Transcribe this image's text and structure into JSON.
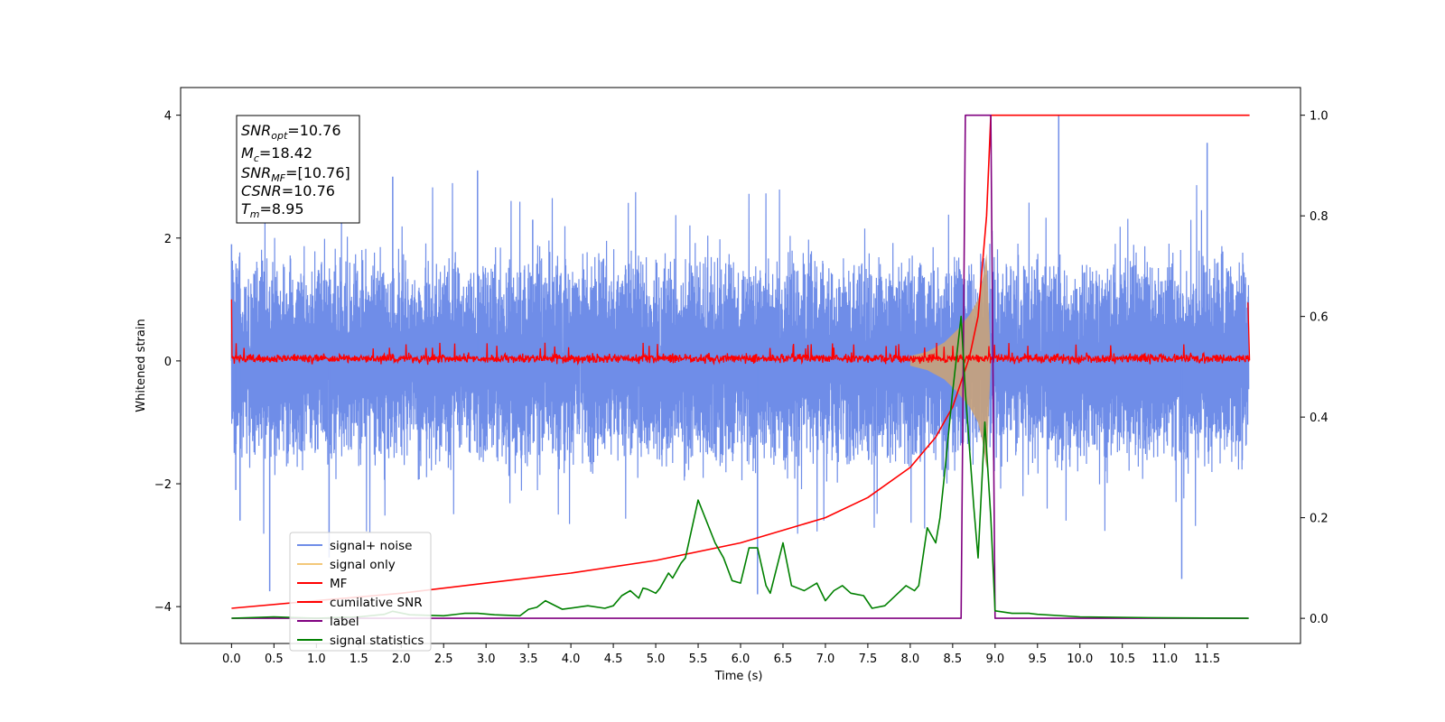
{
  "chart_data": {
    "type": "line",
    "xlabel": "Time (s)",
    "ylabel": "Whitened strain",
    "xlim": [
      -0.6,
      12.6
    ],
    "ylim": [
      -4.6,
      4.45
    ],
    "y2lim": [
      -0.05,
      1.055
    ],
    "x_ticks": [
      0.0,
      0.5,
      1.0,
      1.5,
      2.0,
      2.5,
      3.0,
      3.5,
      4.0,
      4.5,
      5.0,
      5.5,
      6.0,
      6.5,
      7.0,
      7.5,
      8.0,
      8.5,
      9.0,
      9.5,
      10.0,
      10.5,
      11.0,
      11.5
    ],
    "x_tick_labels": [
      "0.0",
      "0.5",
      "1.0",
      "1.5",
      "2.0",
      "2.5",
      "3.0",
      "3.5",
      "4.0",
      "4.5",
      "5.0",
      "5.5",
      "6.0",
      "6.5",
      "7.0",
      "7.5",
      "8.0",
      "8.5",
      "9.0",
      "9.5",
      "10.0",
      "10.5",
      "11.0",
      "11.5"
    ],
    "y_ticks": [
      -4,
      -2,
      0,
      2,
      4
    ],
    "y_tick_labels": [
      "−4",
      "−2",
      "0",
      "2",
      "4"
    ],
    "y2_ticks": [
      0.0,
      0.2,
      0.4,
      0.6,
      0.8,
      1.0
    ],
    "y2_tick_labels": [
      "0.0",
      "0.2",
      "0.4",
      "0.6",
      "0.8",
      "1.0"
    ],
    "grid": false,
    "legend_position": "bottom-left",
    "info_box": {
      "snr_opt": "=10.76",
      "mc": "=18.42",
      "snr_mf": "=[10.76]",
      "csnr": "=10.76",
      "tm": "=8.95"
    },
    "series": [
      {
        "name": "signal+ noise",
        "color": "#6f8de8",
        "axis": "left",
        "x_range": [
          0.0,
          11.99
        ],
        "noise_band": [
          -1.55,
          1.55
        ],
        "peaks": [
          [
            0.0,
            1.9
          ],
          [
            0.05,
            -2.1
          ],
          [
            0.1,
            -2.6
          ],
          [
            0.45,
            -3.75
          ],
          [
            1.15,
            -3.2
          ],
          [
            1.9,
            3.0
          ],
          [
            2.9,
            3.1
          ],
          [
            3.55,
            2.3
          ],
          [
            6.2,
            -3.8
          ],
          [
            9.75,
            4.0
          ],
          [
            11.2,
            -3.55
          ],
          [
            11.5,
            3.55
          ]
        ]
      },
      {
        "name": "signal only",
        "color": "#c8a27a",
        "axis": "left",
        "x": [
          8.0,
          8.2,
          8.4,
          8.55,
          8.7,
          8.8,
          8.85,
          8.9,
          8.95
        ],
        "envelope": [
          0.08,
          0.15,
          0.3,
          0.5,
          0.75,
          1.0,
          1.3,
          1.75,
          0.0
        ]
      },
      {
        "name": "MF",
        "color": "#ff0000",
        "axis": "left",
        "x_range": [
          0.0,
          12.0
        ],
        "noise_band": [
          -0.1,
          0.2
        ],
        "endpoints": [
          [
            0.0,
            1.0
          ],
          [
            11.98,
            0.95
          ]
        ]
      },
      {
        "name": "cumilative SNR",
        "color": "#ff0000",
        "axis": "right",
        "x": [
          0.0,
          1.0,
          2.0,
          3.0,
          4.0,
          5.0,
          6.0,
          7.0,
          7.5,
          8.0,
          8.3,
          8.5,
          8.7,
          8.8,
          8.9,
          8.95,
          9.0,
          12.0
        ],
        "values": [
          0.02,
          0.035,
          0.05,
          0.07,
          0.09,
          0.115,
          0.15,
          0.2,
          0.24,
          0.3,
          0.36,
          0.42,
          0.52,
          0.6,
          0.8,
          1.0,
          1.0,
          1.0
        ]
      },
      {
        "name": "label",
        "color": "#800080",
        "axis": "right",
        "x": [
          0.0,
          8.6,
          8.65,
          8.95,
          9.0,
          11.98
        ],
        "values": [
          0.0,
          0.0,
          1.0,
          1.0,
          0.0,
          0.0
        ]
      },
      {
        "name": "signal statistics",
        "color": "#008000",
        "axis": "right",
        "x": [
          0.0,
          0.5,
          1.0,
          1.5,
          1.8,
          1.9,
          2.1,
          2.5,
          2.75,
          2.9,
          3.1,
          3.4,
          3.5,
          3.6,
          3.7,
          3.9,
          4.2,
          4.4,
          4.5,
          4.6,
          4.7,
          4.8,
          4.85,
          4.9,
          5.0,
          5.05,
          5.15,
          5.2,
          5.3,
          5.35,
          5.5,
          5.7,
          5.8,
          5.9,
          6.0,
          6.1,
          6.2,
          6.3,
          6.35,
          6.5,
          6.6,
          6.75,
          6.9,
          7.0,
          7.1,
          7.2,
          7.3,
          7.45,
          7.55,
          7.7,
          7.95,
          8.05,
          8.1,
          8.2,
          8.3,
          8.35,
          8.4,
          8.5,
          8.6,
          8.65,
          8.75,
          8.8,
          8.88,
          8.95,
          9.0,
          9.2,
          9.4,
          9.5,
          10.0,
          11.0,
          11.99
        ],
        "values": [
          0.0,
          0.003,
          0.0,
          0.003,
          0.008,
          0.014,
          0.007,
          0.005,
          0.01,
          0.01,
          0.007,
          0.005,
          0.018,
          0.022,
          0.035,
          0.018,
          0.025,
          0.02,
          0.025,
          0.045,
          0.055,
          0.04,
          0.06,
          0.058,
          0.05,
          0.06,
          0.09,
          0.08,
          0.11,
          0.12,
          0.235,
          0.15,
          0.12,
          0.075,
          0.07,
          0.14,
          0.14,
          0.065,
          0.05,
          0.15,
          0.065,
          0.055,
          0.07,
          0.035,
          0.055,
          0.065,
          0.05,
          0.045,
          0.02,
          0.025,
          0.065,
          0.055,
          0.065,
          0.18,
          0.15,
          0.2,
          0.28,
          0.45,
          0.6,
          0.45,
          0.22,
          0.12,
          0.39,
          0.2,
          0.015,
          0.01,
          0.01,
          0.008,
          0.003,
          0.001,
          0.0
        ]
      }
    ]
  }
}
